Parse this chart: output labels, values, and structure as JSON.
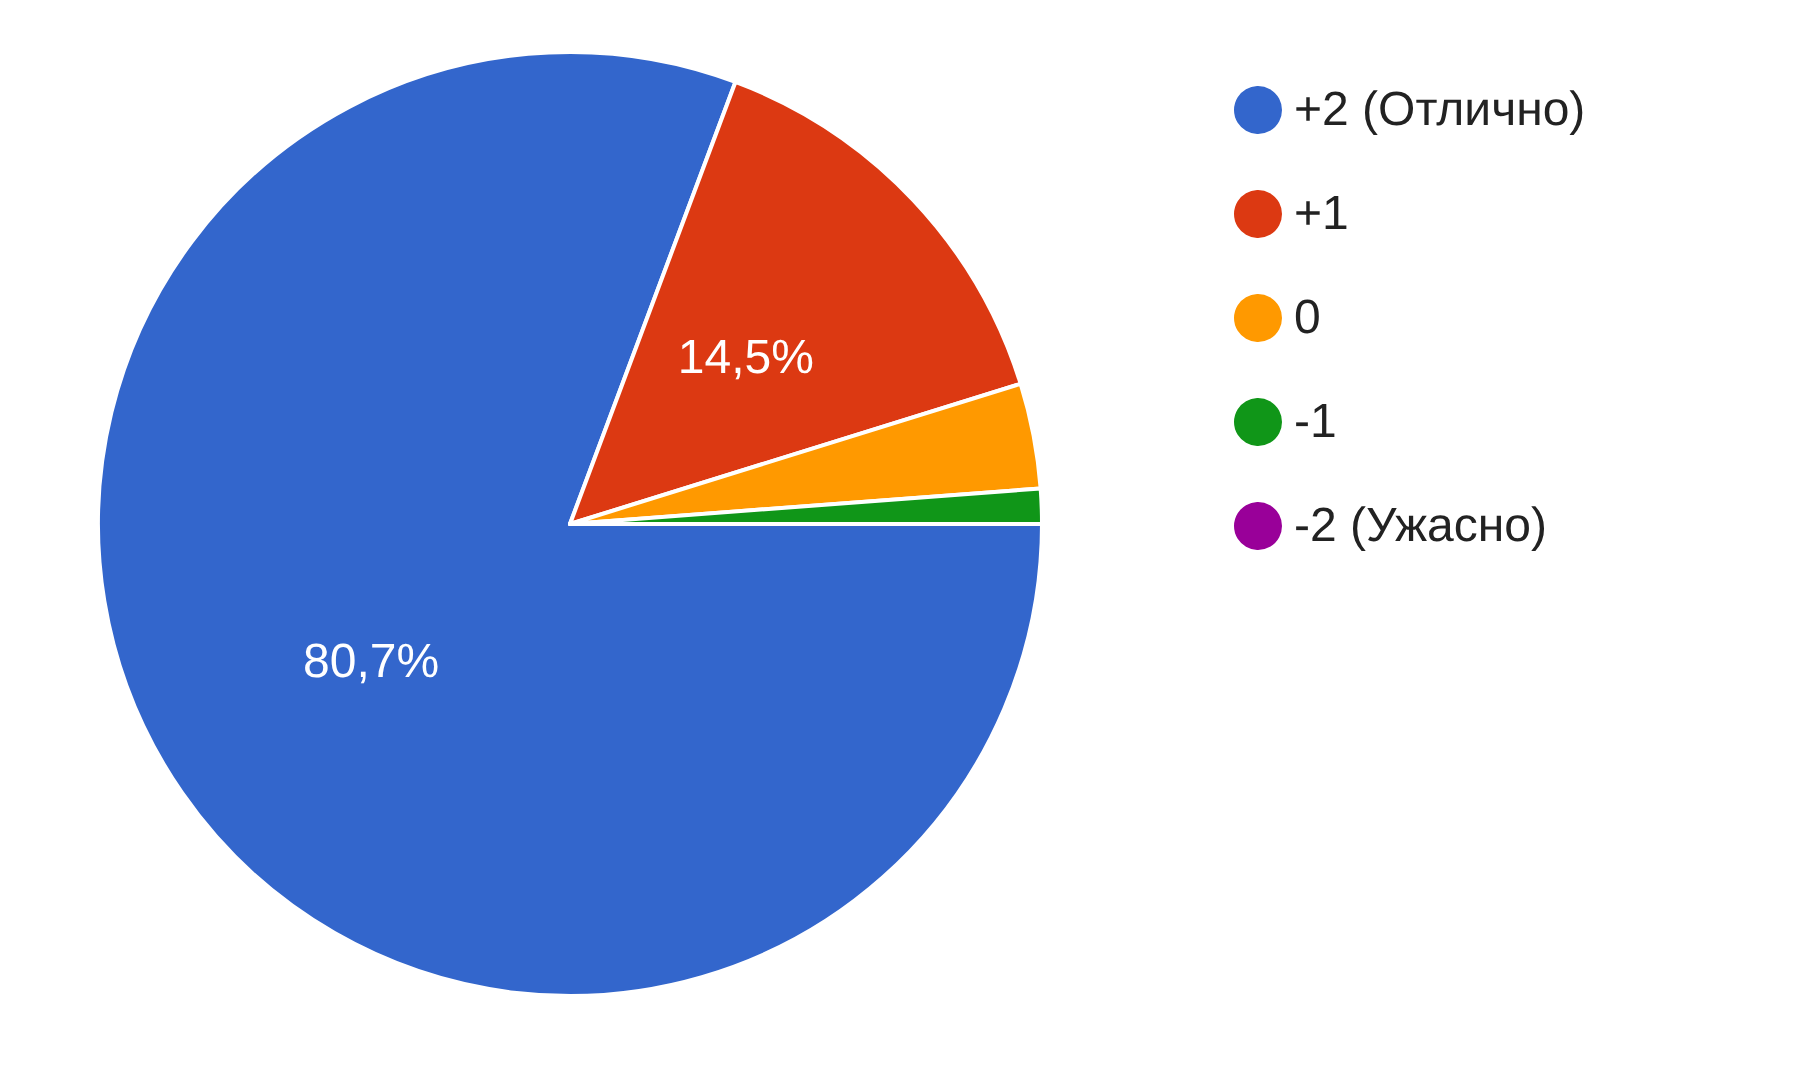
{
  "chart_data": {
    "type": "pie",
    "categories": [
      "+2 (Отлично)",
      "+1",
      "0",
      "-1",
      "-2 (Ужасно)"
    ],
    "values": [
      80.7,
      14.5,
      3.6,
      1.2,
      0
    ],
    "colors": [
      "#3366cc",
      "#dc3912",
      "#ff9900",
      "#109618",
      "#990099"
    ],
    "value_labels": [
      "80,7%",
      "14,5%",
      null,
      null,
      null
    ],
    "legend": "right"
  }
}
